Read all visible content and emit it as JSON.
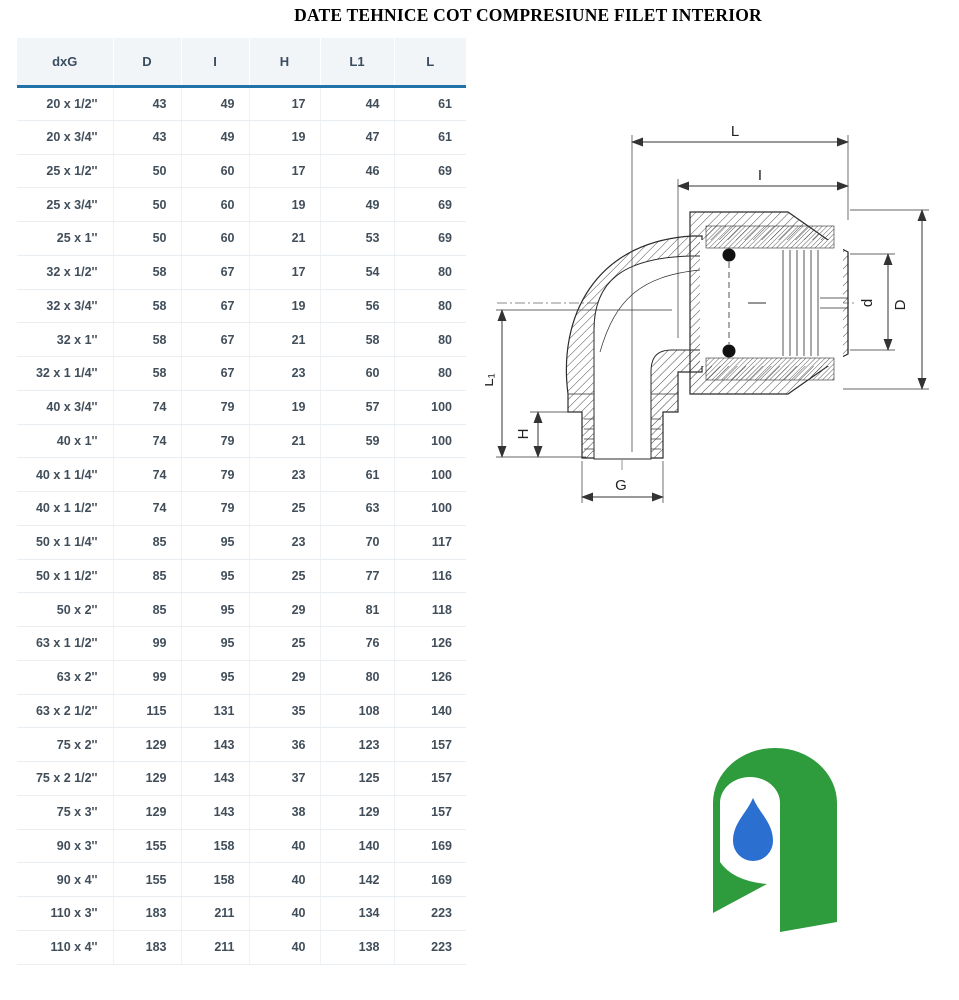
{
  "title": "DATE TEHNICE COT COMPRESIUNE FILET INTERIOR",
  "table": {
    "columns": [
      "dxG",
      "D",
      "I",
      "H",
      "L1",
      "L"
    ],
    "rows": [
      [
        "20 x 1/2''",
        "43",
        "49",
        "17",
        "44",
        "61"
      ],
      [
        "20 x 3/4''",
        "43",
        "49",
        "19",
        "47",
        "61"
      ],
      [
        "25 x 1/2''",
        "50",
        "60",
        "17",
        "46",
        "69"
      ],
      [
        "25 x 3/4''",
        "50",
        "60",
        "19",
        "49",
        "69"
      ],
      [
        "25 x 1''",
        "50",
        "60",
        "21",
        "53",
        "69"
      ],
      [
        "32 x 1/2''",
        "58",
        "67",
        "17",
        "54",
        "80"
      ],
      [
        "32 x 3/4''",
        "58",
        "67",
        "19",
        "56",
        "80"
      ],
      [
        "32 x 1''",
        "58",
        "67",
        "21",
        "58",
        "80"
      ],
      [
        "32 x 1 1/4''",
        "58",
        "67",
        "23",
        "60",
        "80"
      ],
      [
        "40 x 3/4''",
        "74",
        "79",
        "19",
        "57",
        "100"
      ],
      [
        "40 x 1''",
        "74",
        "79",
        "21",
        "59",
        "100"
      ],
      [
        "40 x 1 1/4''",
        "74",
        "79",
        "23",
        "61",
        "100"
      ],
      [
        "40 x 1 1/2''",
        "74",
        "79",
        "25",
        "63",
        "100"
      ],
      [
        "50 x 1 1/4''",
        "85",
        "95",
        "23",
        "70",
        "117"
      ],
      [
        "50 x 1 1/2''",
        "85",
        "95",
        "25",
        "77",
        "116"
      ],
      [
        "50 x 2''",
        "85",
        "95",
        "29",
        "81",
        "118"
      ],
      [
        "63 x 1 1/2''",
        "99",
        "95",
        "25",
        "76",
        "126"
      ],
      [
        "63 x 2''",
        "99",
        "95",
        "29",
        "80",
        "126"
      ],
      [
        "63 x 2 1/2''",
        "115",
        "131",
        "35",
        "108",
        "140"
      ],
      [
        "75 x 2''",
        "129",
        "143",
        "36",
        "123",
        "157"
      ],
      [
        "75 x 2 1/2''",
        "129",
        "143",
        "37",
        "125",
        "157"
      ],
      [
        "75 x 3''",
        "129",
        "143",
        "38",
        "129",
        "157"
      ],
      [
        "90 x 3''",
        "155",
        "158",
        "40",
        "140",
        "169"
      ],
      [
        "90 x 4''",
        "155",
        "158",
        "40",
        "142",
        "169"
      ],
      [
        "110 x 3''",
        "183",
        "211",
        "40",
        "134",
        "223"
      ],
      [
        "110 x 4''",
        "183",
        "211",
        "40",
        "138",
        "223"
      ]
    ]
  },
  "drawing": {
    "labels": {
      "L": "L",
      "I": "I",
      "d": "d",
      "D": "D",
      "L1": "L₁",
      "H": "H",
      "G": "G"
    }
  },
  "logo": {
    "green": "#2e9c3c",
    "drop_blue": "#2b6fd0"
  },
  "theme": {
    "accent_blue": "#2272aa"
  }
}
